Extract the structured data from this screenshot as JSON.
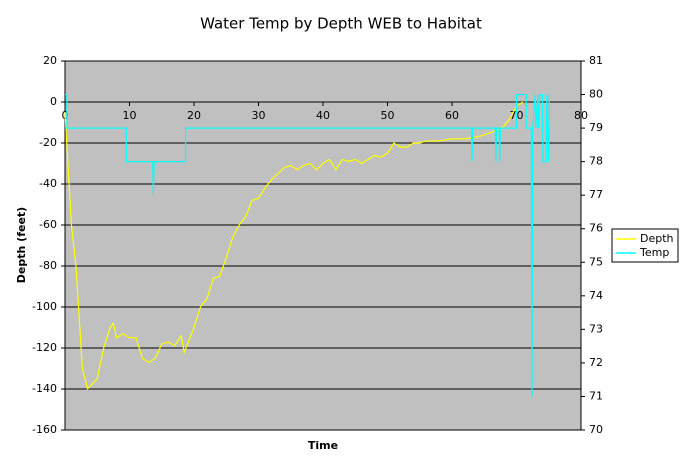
{
  "chart_data": {
    "type": "line",
    "title": "Water Temp by Depth WEB to Habitat",
    "x_label": "Time",
    "y_label": "Depth (feet)",
    "xlim": [
      0,
      80
    ],
    "xticks": [
      0,
      10,
      20,
      30,
      40,
      50,
      60,
      70,
      80
    ],
    "ylim": [
      -160,
      20
    ],
    "yticks": [
      -160,
      -140,
      -120,
      -100,
      -80,
      -60,
      -40,
      -20,
      0,
      20
    ],
    "y2lim": [
      70,
      81
    ],
    "y2ticks": [
      70,
      71,
      72,
      73,
      74,
      75,
      76,
      77,
      78,
      79,
      80,
      81
    ],
    "grid": true,
    "legend": "right",
    "series": [
      {
        "name": "Depth",
        "color": "#ffff00",
        "x": [
          0,
          1,
          1.7,
          2.7,
          3.5,
          5,
          6,
          7,
          7.5,
          8,
          9,
          10,
          11,
          12,
          13,
          14,
          15,
          16,
          17,
          18,
          18.5,
          20,
          21,
          22,
          23,
          24,
          25,
          26,
          27,
          28,
          29,
          30,
          31,
          32,
          33,
          34,
          35,
          36,
          37,
          38,
          39,
          40,
          41,
          42,
          43,
          44,
          45,
          46,
          47,
          48,
          49,
          50,
          51,
          52,
          53,
          54,
          55,
          56,
          58,
          60,
          62,
          64,
          66,
          68,
          69,
          70,
          71
        ],
        "values": [
          -5,
          -60,
          -80,
          -130,
          -140,
          -135,
          -120,
          -110,
          -108,
          -115,
          -113,
          -115,
          -115,
          -125,
          -127,
          -125,
          -118,
          -117,
          -119,
          -114,
          -122,
          -110,
          -100,
          -96,
          -86,
          -85,
          -76,
          -66,
          -60,
          -56,
          -48,
          -47,
          -42,
          -38,
          -35,
          -32,
          -31,
          -33,
          -31,
          -30,
          -33,
          -30,
          -28,
          -33,
          -28,
          -29,
          -28,
          -30,
          -28,
          -26,
          -27,
          -25,
          -20,
          -22,
          -22,
          -20,
          -20,
          -19,
          -19,
          -18,
          -18,
          -17,
          -15,
          -12,
          -8,
          -2,
          0
        ]
      },
      {
        "name": "Temp",
        "color": "#00ffff",
        "axis": "y2",
        "x": [
          0,
          0.3,
          0.3,
          9.5,
          9.5,
          13.6,
          13.7,
          13.8,
          18.7,
          18.7,
          63,
          63.1,
          63.2,
          63.3,
          66.7,
          66.8,
          66.9,
          67.3,
          67.4,
          67.5,
          70,
          70,
          71.5,
          71.5,
          72.3,
          72.4,
          72.5,
          72.9,
          73,
          73.3,
          73.4,
          73.6,
          74,
          74.1,
          74.6,
          74.7,
          75,
          75.1
        ],
        "values": [
          80,
          80,
          79,
          79,
          78,
          78,
          77,
          78,
          78,
          79,
          79,
          78,
          79,
          79,
          79,
          78,
          79,
          79,
          78,
          79,
          79,
          80,
          80,
          79,
          79,
          71,
          79,
          80,
          79,
          80,
          79,
          80,
          80,
          78,
          78,
          80,
          78,
          80
        ]
      }
    ]
  }
}
